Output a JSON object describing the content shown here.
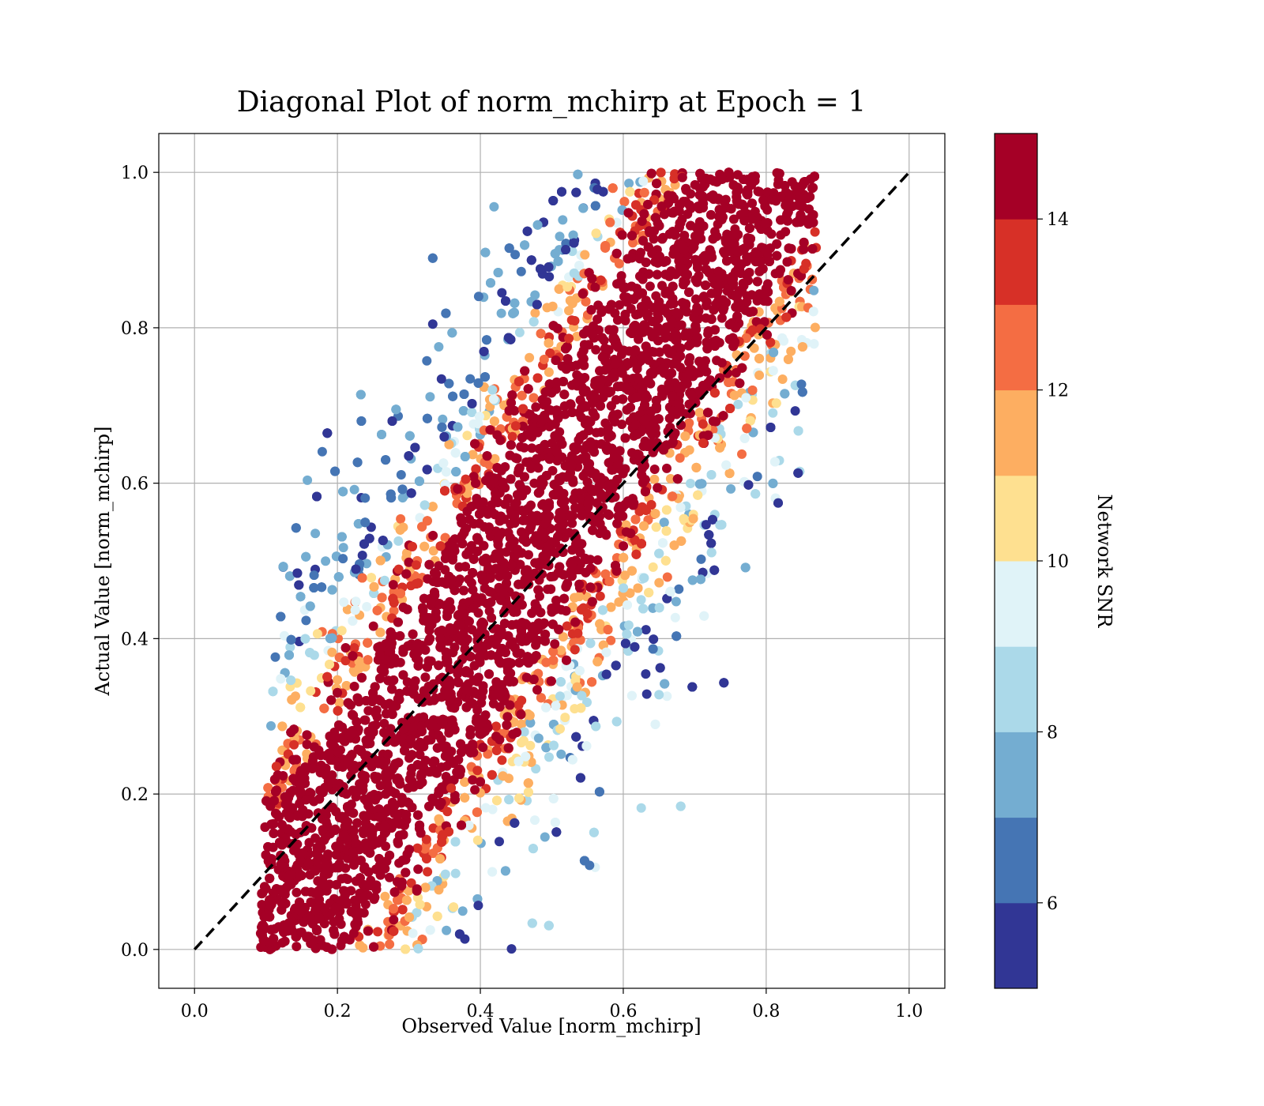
{
  "chart_data": {
    "type": "scatter",
    "title": "Diagonal Plot of norm_mchirp at Epoch = 1",
    "xlabel": "Observed Value [norm_mchirp]",
    "ylabel": "Actual Value [norm_mchirp]",
    "xlim": [
      -0.05,
      1.05
    ],
    "ylim": [
      -0.05,
      1.05
    ],
    "xticks": [
      "0.0",
      "0.2",
      "0.4",
      "0.6",
      "0.8",
      "1.0"
    ],
    "yticks": [
      "0.0",
      "0.2",
      "0.4",
      "0.6",
      "0.8",
      "1.0"
    ],
    "grid": true,
    "reference_line": {
      "from": [
        0.0,
        0.0
      ],
      "to": [
        1.0,
        1.0
      ],
      "style": "dashed",
      "color": "#000000"
    },
    "colorbar": {
      "label": "Network SNR",
      "range": [
        5,
        15
      ],
      "ticks": [
        "6",
        "8",
        "10",
        "12",
        "14"
      ],
      "colors": [
        "#313695",
        "#4575b4",
        "#74add1",
        "#abd9e9",
        "#e0f3f8",
        "#fee090",
        "#fdae61",
        "#f46d43",
        "#d73027",
        "#a50026"
      ]
    },
    "point_cloud": {
      "description_points": [
        {
          "x": 0.1,
          "y": 0.05,
          "snr": 15
        },
        {
          "x": 0.2,
          "y": 0.2,
          "snr": 15
        },
        {
          "x": 0.4,
          "y": 0.4,
          "snr": 15
        },
        {
          "x": 0.6,
          "y": 0.6,
          "snr": 15
        },
        {
          "x": 0.8,
          "y": 0.8,
          "snr": 15
        },
        {
          "x": 0.75,
          "y": 0.95,
          "snr": 15
        },
        {
          "x": 0.3,
          "y": 0.85,
          "snr": 5
        },
        {
          "x": 0.35,
          "y": 0.7,
          "snr": 7
        },
        {
          "x": 0.3,
          "y": 0.6,
          "snr": 8
        },
        {
          "x": 0.5,
          "y": 0.1,
          "snr": 9
        },
        {
          "x": 0.6,
          "y": 0.1,
          "snr": 5
        },
        {
          "x": 0.7,
          "y": 0.3,
          "snr": 8
        }
      ]
    }
  }
}
